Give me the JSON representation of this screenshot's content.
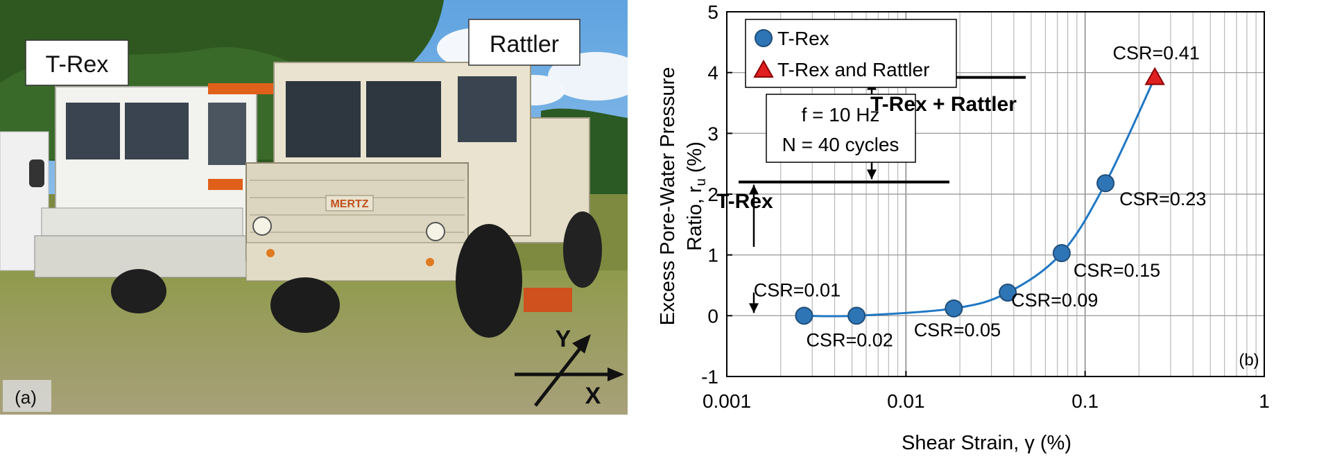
{
  "panel_a": {
    "labels": {
      "trex": "T-Rex",
      "rattler": "Rattler",
      "panel": "(a)",
      "grille_text": "MERTZ",
      "axis_x": "X",
      "axis_y": "Y"
    },
    "colors": {
      "sky": "#8fc0ea",
      "trees": "#2f5a22",
      "grass": "#9a9a52",
      "trex_body": "#f2f2ee",
      "rattler_body": "#e9e3cf",
      "tire": "#1f1f1f"
    }
  },
  "chart_data": {
    "type": "scatter",
    "xlabel": "Shear Strain, γ (%)",
    "ylabel_line1": "Excess Pore-Water Pressure",
    "ylabel_line2_prefix": "Ratio, r",
    "ylabel_line2_sub": "u",
    "ylabel_line2_suffix": " (%)",
    "x_scale": "log",
    "xlim": [
      0.001,
      1
    ],
    "ylim": [
      -1,
      5
    ],
    "x_ticks": [
      0.001,
      0.01,
      0.1,
      1
    ],
    "x_tick_labels": [
      "0.001",
      "0.01",
      "0.1",
      "1"
    ],
    "y_ticks": [
      -1,
      0,
      1,
      2,
      3,
      4,
      5
    ],
    "y_tick_labels": [
      "-1",
      "0",
      "1",
      "2",
      "3",
      "4",
      "5"
    ],
    "grid": true,
    "legend_position": "top-left",
    "panel_label": "(b)",
    "series": [
      {
        "name": "T-Rex",
        "marker": "circle",
        "color": "#2e75b6",
        "points": [
          {
            "x": 0.0027,
            "y": 0.0,
            "label": "CSR=0.01"
          },
          {
            "x": 0.0053,
            "y": 0.0,
            "label": "CSR=0.02"
          },
          {
            "x": 0.0185,
            "y": 0.12,
            "label": "CSR=0.05"
          },
          {
            "x": 0.037,
            "y": 0.38,
            "label": "CSR=0.09"
          },
          {
            "x": 0.074,
            "y": 1.03,
            "label": "CSR=0.15"
          },
          {
            "x": 0.13,
            "y": 2.18,
            "label": "CSR=0.23"
          }
        ]
      },
      {
        "name": "T-Rex and Rattler",
        "marker": "triangle",
        "color": "#e02020",
        "points": [
          {
            "x": 0.245,
            "y": 3.92,
            "label": "CSR=0.41"
          }
        ]
      }
    ],
    "fit_curve": {
      "color": "#1f77c4",
      "points": [
        [
          0.0027,
          0.0
        ],
        [
          0.0053,
          0.0
        ],
        [
          0.0185,
          0.12
        ],
        [
          0.037,
          0.38
        ],
        [
          0.074,
          1.03
        ],
        [
          0.13,
          2.18
        ],
        [
          0.245,
          3.92
        ]
      ]
    },
    "annotations": {
      "conditions_line1": "f = 10 Hz",
      "conditions_line2": "N = 40 cycles",
      "trex_range": "T-Rex",
      "combined_range": "T-Rex + Rattler",
      "trex_level": 2.2,
      "combined_level": 3.92
    }
  }
}
